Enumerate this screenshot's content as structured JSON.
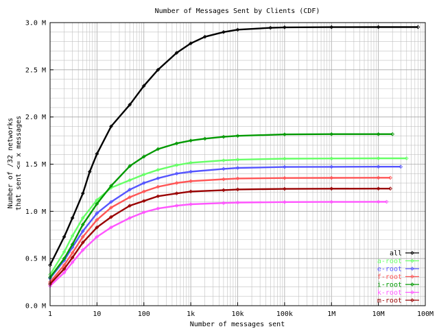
{
  "chart_data": {
    "type": "line",
    "title": "Number of Messages Sent by Clients (CDF)",
    "xlabel": "Number of messages sent",
    "ylabel_lines": [
      "Number of /32 networks",
      "that sent <= x messages"
    ],
    "x_scale": "log",
    "xlim": [
      1,
      100000000
    ],
    "ylim": [
      0,
      3000000
    ],
    "x_ticks": [
      {
        "value": 1,
        "label": "1"
      },
      {
        "value": 10,
        "label": "10"
      },
      {
        "value": 100,
        "label": "100"
      },
      {
        "value": 1000,
        "label": "1k"
      },
      {
        "value": 10000,
        "label": "10k"
      },
      {
        "value": 100000,
        "label": "100k"
      },
      {
        "value": 1000000,
        "label": "1M"
      },
      {
        "value": 10000000,
        "label": "10M"
      },
      {
        "value": 100000000,
        "label": "100M"
      }
    ],
    "y_ticks": [
      {
        "value": 0,
        "label": "0.0 M"
      },
      {
        "value": 500000,
        "label": "0.5 M"
      },
      {
        "value": 1000000,
        "label": "1.0 M"
      },
      {
        "value": 1500000,
        "label": "1.5 M"
      },
      {
        "value": 2000000,
        "label": "2.0 M"
      },
      {
        "value": 2500000,
        "label": "2.5 M"
      },
      {
        "value": 3000000,
        "label": "3.0 M"
      }
    ],
    "grid": true,
    "legend_position": "bottom-right",
    "series": [
      {
        "name": "all",
        "color": "#000000",
        "points": [
          [
            1,
            430000
          ],
          [
            2,
            730000
          ],
          [
            3,
            930000
          ],
          [
            5,
            1190000
          ],
          [
            7,
            1420000
          ],
          [
            10,
            1610000
          ],
          [
            20,
            1900000
          ],
          [
            50,
            2130000
          ],
          [
            100,
            2330000
          ],
          [
            200,
            2500000
          ],
          [
            500,
            2680000
          ],
          [
            1000,
            2780000
          ],
          [
            2000,
            2850000
          ],
          [
            5000,
            2900000
          ],
          [
            10000,
            2925000
          ],
          [
            50000,
            2945000
          ],
          [
            100000,
            2950000
          ],
          [
            1000000,
            2952000
          ],
          [
            10000000,
            2953000
          ],
          [
            70000000,
            2953000
          ]
        ]
      },
      {
        "name": "a-root",
        "color": "#66ff66",
        "points": [
          [
            1,
            330000
          ],
          [
            2,
            570000
          ],
          [
            3,
            740000
          ],
          [
            5,
            930000
          ],
          [
            10,
            1120000
          ],
          [
            20,
            1250000
          ],
          [
            50,
            1330000
          ],
          [
            100,
            1390000
          ],
          [
            200,
            1440000
          ],
          [
            500,
            1490000
          ],
          [
            1000,
            1515000
          ],
          [
            5000,
            1540000
          ],
          [
            10000,
            1548000
          ],
          [
            100000,
            1558000
          ],
          [
            1000000,
            1560000
          ],
          [
            10000000,
            1562000
          ],
          [
            40000000,
            1562000
          ]
        ]
      },
      {
        "name": "e-root",
        "color": "#5555ff",
        "points": [
          [
            1,
            290000
          ],
          [
            2,
            480000
          ],
          [
            3,
            620000
          ],
          [
            5,
            790000
          ],
          [
            10,
            980000
          ],
          [
            20,
            1100000
          ],
          [
            50,
            1230000
          ],
          [
            100,
            1300000
          ],
          [
            200,
            1350000
          ],
          [
            500,
            1400000
          ],
          [
            1000,
            1420000
          ],
          [
            5000,
            1450000
          ],
          [
            10000,
            1460000
          ],
          [
            100000,
            1470000
          ],
          [
            1000000,
            1472000
          ],
          [
            10000000,
            1473000
          ],
          [
            30000000,
            1473000
          ]
        ]
      },
      {
        "name": "f-root",
        "color": "#ff5555",
        "points": [
          [
            1,
            250000
          ],
          [
            2,
            430000
          ],
          [
            3,
            560000
          ],
          [
            5,
            730000
          ],
          [
            10,
            910000
          ],
          [
            20,
            1040000
          ],
          [
            50,
            1150000
          ],
          [
            100,
            1210000
          ],
          [
            200,
            1260000
          ],
          [
            500,
            1300000
          ],
          [
            1000,
            1320000
          ],
          [
            5000,
            1340000
          ],
          [
            10000,
            1348000
          ],
          [
            100000,
            1353000
          ],
          [
            1000000,
            1355000
          ],
          [
            10000000,
            1356000
          ],
          [
            18000000,
            1356000
          ]
        ]
      },
      {
        "name": "i-root",
        "color": "#009900",
        "points": [
          [
            1,
            300000
          ],
          [
            2,
            500000
          ],
          [
            3,
            650000
          ],
          [
            5,
            860000
          ],
          [
            10,
            1080000
          ],
          [
            20,
            1270000
          ],
          [
            50,
            1480000
          ],
          [
            100,
            1580000
          ],
          [
            200,
            1660000
          ],
          [
            500,
            1720000
          ],
          [
            1000,
            1750000
          ],
          [
            2000,
            1770000
          ],
          [
            5000,
            1790000
          ],
          [
            10000,
            1800000
          ],
          [
            100000,
            1815000
          ],
          [
            1000000,
            1818000
          ],
          [
            10000000,
            1818000
          ],
          [
            20000000,
            1818000
          ]
        ]
      },
      {
        "name": "k-root",
        "color": "#ff55ff",
        "points": [
          [
            1,
            210000
          ],
          [
            2,
            350000
          ],
          [
            3,
            460000
          ],
          [
            5,
            590000
          ],
          [
            10,
            730000
          ],
          [
            20,
            830000
          ],
          [
            50,
            930000
          ],
          [
            100,
            990000
          ],
          [
            200,
            1030000
          ],
          [
            500,
            1060000
          ],
          [
            1000,
            1075000
          ],
          [
            5000,
            1088000
          ],
          [
            10000,
            1093000
          ],
          [
            100000,
            1098000
          ],
          [
            1000000,
            1100000
          ],
          [
            10000000,
            1101000
          ],
          [
            15000000,
            1101000
          ]
        ]
      },
      {
        "name": "m-root",
        "color": "#990000",
        "points": [
          [
            1,
            230000
          ],
          [
            2,
            390000
          ],
          [
            3,
            510000
          ],
          [
            5,
            670000
          ],
          [
            10,
            830000
          ],
          [
            20,
            940000
          ],
          [
            50,
            1060000
          ],
          [
            100,
            1110000
          ],
          [
            200,
            1160000
          ],
          [
            500,
            1190000
          ],
          [
            1000,
            1210000
          ],
          [
            5000,
            1225000
          ],
          [
            10000,
            1232000
          ],
          [
            100000,
            1238000
          ],
          [
            1000000,
            1240000
          ],
          [
            10000000,
            1241000
          ],
          [
            18000000,
            1241000
          ]
        ]
      }
    ]
  }
}
